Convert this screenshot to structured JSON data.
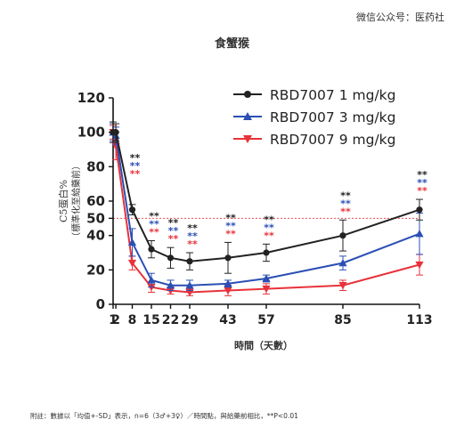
{
  "watermark": "微信公众号：医药社",
  "footnote": "附註：數據以「均值+-SD」表示，n=6（3♂+3♀）／時間點，與給藥前相比，**P<0.01",
  "chart_data": {
    "type": "line",
    "title": "食蟹猴",
    "xlabel": "時間（天數）",
    "ylabel": "C5蛋白%",
    "ylabel_sub": "（標準化至給藥前）",
    "x": [
      1,
      2,
      8,
      15,
      22,
      29,
      43,
      57,
      85,
      113
    ],
    "x_tick_labels": [
      "1",
      "2",
      "8",
      "15",
      "22",
      "29",
      "43",
      "57",
      "85",
      "113"
    ],
    "xlim": [
      1,
      113
    ],
    "ylim": [
      0,
      120
    ],
    "y_ticks": [
      0,
      20,
      40,
      50,
      60,
      80,
      100,
      120
    ],
    "reference_line": 50,
    "legend_position": "top-right",
    "series": [
      {
        "name": "RBD7007 1 mg/kg",
        "color": "#222222",
        "marker": "circle",
        "values": [
          100,
          100,
          55,
          32,
          27,
          25,
          27,
          30,
          40,
          55
        ],
        "error": [
          6,
          5,
          3,
          5,
          6,
          5,
          9,
          5,
          9,
          6
        ]
      },
      {
        "name": "RBD7007 3 mg/kg",
        "color": "#2b4fb4",
        "marker": "triangle-up",
        "values": [
          100,
          98,
          36,
          14,
          11,
          11,
          12,
          15,
          24,
          41
        ],
        "error": [
          5,
          5,
          8,
          4,
          3,
          3,
          2,
          2,
          4,
          12
        ]
      },
      {
        "name": "RBD7007 9 mg/kg",
        "color": "#e8323a",
        "marker": "triangle-down",
        "values": [
          100,
          92,
          24,
          10,
          8,
          7,
          8,
          9,
          11,
          23
        ],
        "error": [
          4,
          8,
          4,
          3,
          2,
          2,
          3,
          3,
          3,
          6
        ]
      }
    ],
    "significance": {
      "label": "**",
      "x": [
        8,
        15,
        22,
        29,
        43,
        57,
        85,
        113
      ],
      "colors": [
        "#222222",
        "#2b4fb4",
        "#e8323a"
      ]
    }
  }
}
